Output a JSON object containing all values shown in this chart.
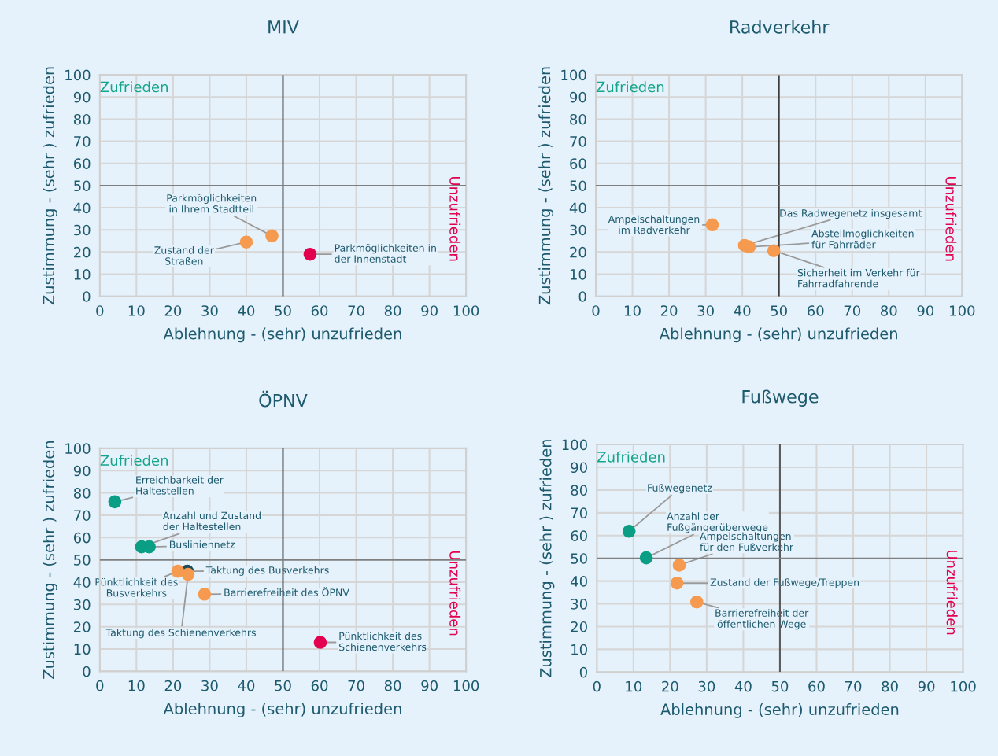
{
  "chart_data": [
    {
      "type": "scatter",
      "title": "MIV",
      "xlabel": "Ablehnung - (sehr) unzufrieden",
      "ylabel": "Zustimmung - (sehr ) zufrieden",
      "xlim": [
        0,
        100
      ],
      "ylim": [
        0,
        100
      ],
      "xticks": [
        0,
        10,
        20,
        30,
        40,
        50,
        60,
        70,
        80,
        90,
        100
      ],
      "yticks": [
        0,
        10,
        20,
        30,
        40,
        50,
        60,
        70,
        80,
        90,
        100
      ],
      "grid": true,
      "marker": "circle",
      "legend": false,
      "ref_lines": [
        {
          "axis": "x",
          "value": 50,
          "color": "#5a5a5a"
        },
        {
          "axis": "y",
          "value": 50,
          "color": "#7f7f7f"
        }
      ],
      "series": [
        {
          "x": [
            40,
            47,
            57.4
          ],
          "values": [
            24.5,
            27.3,
            19
          ],
          "colors": [
            "#f59a4f",
            "#f59a4f",
            "#e3004f"
          ]
        }
      ],
      "annotations": [
        "Zufrieden",
        "Unzufrieden",
        {
          "text": "Parkmöglichkeiten\nin Ihrem Stadtteil",
          "x": 47,
          "y": 27.3
        },
        {
          "text": "Zustand der\nStraßen",
          "x": 40,
          "y": 24.5
        },
        {
          "text": "Parkmöglichkeiten in\nder Innenstadt",
          "x": 57.4,
          "y": 19
        }
      ]
    },
    {
      "type": "scatter",
      "title": "Radverkehr",
      "xlabel": "Ablehnung - (sehr) unzufrieden",
      "ylabel": "Zustimmung - (sehr ) zufrieden",
      "xlim": [
        0,
        100
      ],
      "ylim": [
        0,
        100
      ],
      "xticks": [
        0,
        10,
        20,
        30,
        40,
        50,
        60,
        70,
        80,
        90,
        100
      ],
      "yticks": [
        0,
        10,
        20,
        30,
        40,
        50,
        60,
        70,
        80,
        90,
        100
      ],
      "grid": true,
      "marker": "circle",
      "legend": false,
      "ref_lines": [
        {
          "axis": "x",
          "value": 50,
          "color": "#3f3f3f"
        },
        {
          "axis": "y",
          "value": 50,
          "color": "#7f7f7f"
        }
      ],
      "series": [
        {
          "x": [
            31.8,
            40.6,
            41.9,
            48.6
          ],
          "values": [
            32.3,
            23,
            22.3,
            20.6
          ],
          "colors": [
            "#f59a4f",
            "#f59a4f",
            "#f59a4f",
            "#f59a4f"
          ]
        }
      ],
      "annotations": [
        "Zufrieden",
        "Unzufrieden",
        {
          "text": "Ampelschaltungen\nim Radverkehr",
          "x": 31.8,
          "y": 32.3
        },
        {
          "text": "Das Radwegenetz insgesamt",
          "x": 40.6,
          "y": 23
        },
        {
          "text": "Abstellmöglichkeiten\nfür Fahrräder",
          "x": 41.9,
          "y": 22.3
        },
        {
          "text": "Sicherheit im Verkehr für\nFahrradfahrende",
          "x": 48.6,
          "y": 20.6
        }
      ]
    },
    {
      "type": "scatter",
      "title": "ÖPNV",
      "xlabel": "Ablehnung - (sehr) unzufrieden",
      "ylabel": "Zustimmung - (sehr ) zufrieden",
      "xlim": [
        0,
        100
      ],
      "ylim": [
        0,
        100
      ],
      "xticks": [
        0,
        10,
        20,
        30,
        40,
        50,
        60,
        70,
        80,
        90,
        100
      ],
      "yticks": [
        0,
        10,
        20,
        30,
        40,
        50,
        60,
        70,
        80,
        90,
        100
      ],
      "grid": true,
      "marker": "circle",
      "legend": false,
      "ref_lines": [
        {
          "axis": "x",
          "value": 50,
          "color": "#5a5a5a"
        },
        {
          "axis": "y",
          "value": 50,
          "color": "#7f7f7f"
        }
      ],
      "series": [
        {
          "x": [
            4.1,
            11.4,
            13.5,
            23.9,
            21.3,
            28.6,
            24.1,
            60.2
          ],
          "values": [
            76,
            55.8,
            55.8,
            44.9,
            44.9,
            34.6,
            43.5,
            13
          ],
          "colors": [
            "#0a9e85",
            "#0a9e85",
            "#0a9e85",
            "#1f4a5c",
            "#f59a4f",
            "#f59a4f",
            "#f59a4f",
            "#e3004f"
          ]
        }
      ],
      "annotations": [
        "Zufrieden",
        "Unzufrieden",
        {
          "text": "Erreichbarkeit der\nHaltestellen",
          "x": 4.1,
          "y": 76
        },
        {
          "text": "Anzahl und Zustand\nder Haltestellen",
          "x": 11.4,
          "y": 55.8
        },
        {
          "text": "Busliniennetz",
          "x": 13.5,
          "y": 55.8
        },
        {
          "text": "Taktung des Busverkehrs",
          "x": 23.9,
          "y": 44.9
        },
        {
          "text": "Pünktlichkeit des\nBusverkehrs",
          "x": 21.3,
          "y": 44.9
        },
        {
          "text": "Barrierefreiheit des ÖPNV",
          "x": 28.6,
          "y": 34.6
        },
        {
          "text": "Taktung des Schienenverkehrs",
          "x": 24.1,
          "y": 43.5
        },
        {
          "text": "Pünktlichkeit des\nSchienenverkehrs",
          "x": 60.2,
          "y": 13
        }
      ]
    },
    {
      "type": "scatter",
      "title": "Fußwege",
      "xlabel": "Ablehnung - (sehr) unzufrieden",
      "ylabel": "Zustimmung - (sehr ) zufrieden",
      "xlim": [
        0,
        100
      ],
      "ylim": [
        0,
        100
      ],
      "xticks": [
        0,
        10,
        20,
        30,
        40,
        50,
        60,
        70,
        80,
        90,
        100
      ],
      "yticks": [
        0,
        10,
        20,
        30,
        40,
        50,
        60,
        70,
        80,
        90,
        100
      ],
      "grid": true,
      "marker": "circle",
      "legend": false,
      "ref_lines": [
        {
          "axis": "x",
          "value": 50,
          "color": "#5a5a5a"
        },
        {
          "axis": "y",
          "value": 50,
          "color": "#7f7f7f"
        }
      ],
      "series": [
        {
          "x": [
            8.8,
            13.5,
            22.5,
            21.9,
            27.3
          ],
          "values": [
            61.9,
            50.2,
            47,
            39.1,
            30.8
          ],
          "colors": [
            "#0a9e85",
            "#0a9e85",
            "#f59a4f",
            "#f59a4f",
            "#f59a4f"
          ]
        }
      ],
      "annotations": [
        "Zufrieden",
        "Unzufrieden",
        {
          "text": "Fußwegenetz",
          "x": 8.8,
          "y": 61.9
        },
        {
          "text": "Anzahl der\nFußgängerüberwege",
          "x": 13.5,
          "y": 50.2
        },
        {
          "text": "Ampelschaltungen\nfür den Fußverkehr",
          "x": 22.5,
          "y": 47
        },
        {
          "text": "Zustand der Fußwege/Treppen",
          "x": 21.9,
          "y": 39.1
        },
        {
          "text": "Barrierefreiheit der\nöffentlichen Wege",
          "x": 27.3,
          "y": 30.8
        }
      ]
    }
  ]
}
